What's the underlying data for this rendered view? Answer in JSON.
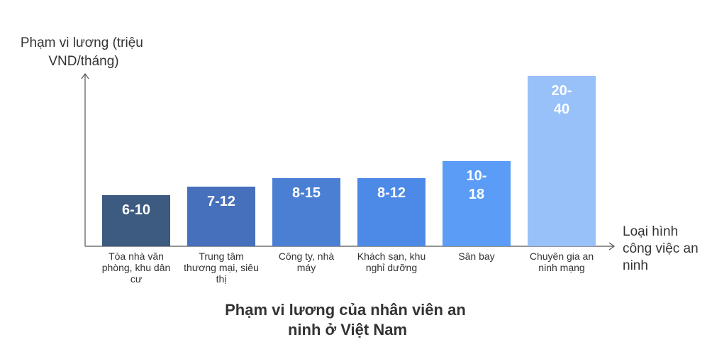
{
  "chart_data": {
    "type": "bar",
    "title": [
      "Phạm vi lương của nhân viên an",
      "ninh ở Việt Nam"
    ],
    "ylabel": [
      "Phạm vi lương (triệu",
      "VND/tháng)"
    ],
    "xlabel": [
      "Loại hình",
      "công việc an",
      "ninh"
    ],
    "categories": [
      [
        "Tòa nhà văn",
        "phòng, khu dân",
        "cư"
      ],
      [
        "Trung tâm",
        "thương mại, siêu",
        "thị"
      ],
      [
        "Công ty, nhà",
        "máy"
      ],
      [
        "Khách sạn, khu",
        "nghỉ dưỡng"
      ],
      [
        "Sân bay"
      ],
      [
        "Chuyên gia an",
        "ninh mạng"
      ]
    ],
    "range_labels": [
      [
        "6-10"
      ],
      [
        "7-12"
      ],
      [
        "8-15"
      ],
      [
        "8-12"
      ],
      [
        "10-",
        "18"
      ],
      [
        "20-",
        "40"
      ]
    ],
    "values": [
      6,
      7,
      8,
      8,
      10,
      20
    ],
    "colors": [
      "#3d5a80",
      "#466fbc",
      "#4b7fd4",
      "#4d8ae8",
      "#5a9cf6",
      "#98c1fa"
    ],
    "ylim": [
      0,
      20
    ],
    "grid": false,
    "legend": "none"
  }
}
